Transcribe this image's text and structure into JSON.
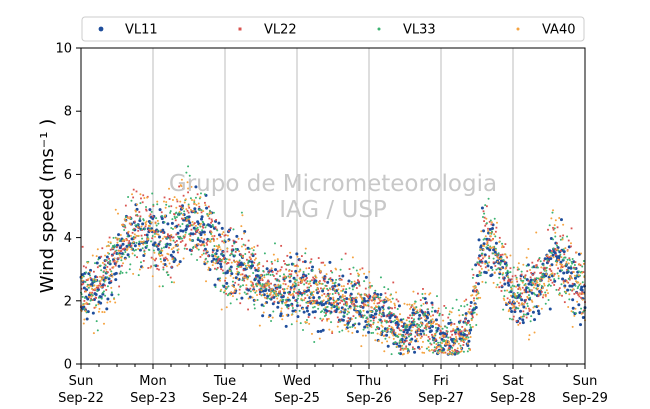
{
  "watermark": {
    "line1": "Grupo de Micrometeorologia",
    "line2": "IAG / USP"
  },
  "chart_data": {
    "type": "scatter",
    "ylabel": "Wind speed (ms⁻¹ )",
    "ylim": [
      0,
      10
    ],
    "yticks": [
      0,
      2,
      4,
      6,
      8,
      10
    ],
    "xlim": [
      "2024-09-22 00:00",
      "2024-09-29 00:00"
    ],
    "xticks": [
      {
        "day": "Sun",
        "date": "Sep-22"
      },
      {
        "day": "Mon",
        "date": "Sep-23"
      },
      {
        "day": "Tue",
        "date": "Sep-24"
      },
      {
        "day": "Wed",
        "date": "Sep-25"
      },
      {
        "day": "Thu",
        "date": "Sep-26"
      },
      {
        "day": "Fri",
        "date": "Sep-27"
      },
      {
        "day": "Sat",
        "date": "Sep-28"
      },
      {
        "day": "Sun",
        "date": "Sep-29"
      }
    ],
    "grid": "vertical",
    "legend_placement": "top",
    "series": [
      {
        "name": "VL11",
        "color": "#1f4e9c",
        "marker": "circle"
      },
      {
        "name": "VL22",
        "color": "#d9534f",
        "marker": "square"
      },
      {
        "name": "VL33",
        "color": "#3cb371",
        "marker": "circle"
      },
      {
        "name": "VA40",
        "color": "#f5a340",
        "marker": "circle"
      }
    ],
    "trend": {
      "x_day": [
        0,
        0.25,
        0.5,
        0.75,
        1.0,
        1.25,
        1.5,
        1.75,
        2.0,
        2.25,
        2.5,
        2.75,
        3.0,
        3.25,
        3.5,
        3.75,
        4.0,
        4.25,
        4.5,
        4.75,
        5.0,
        5.2,
        5.4,
        5.6,
        5.75,
        5.9,
        6.0,
        6.2,
        6.4,
        6.6,
        6.8,
        7.0
      ],
      "wind_speed": [
        2.4,
        2.3,
        3.5,
        4.3,
        4.2,
        3.9,
        4.7,
        4.1,
        3.2,
        3.1,
        2.5,
        2.4,
        2.4,
        2.2,
        2.1,
        2.0,
        1.8,
        1.4,
        0.9,
        1.5,
        0.8,
        0.7,
        1.2,
        4.0,
        3.5,
        2.8,
        2.1,
        2.3,
        2.6,
        3.4,
        2.8,
        2.3
      ]
    }
  }
}
